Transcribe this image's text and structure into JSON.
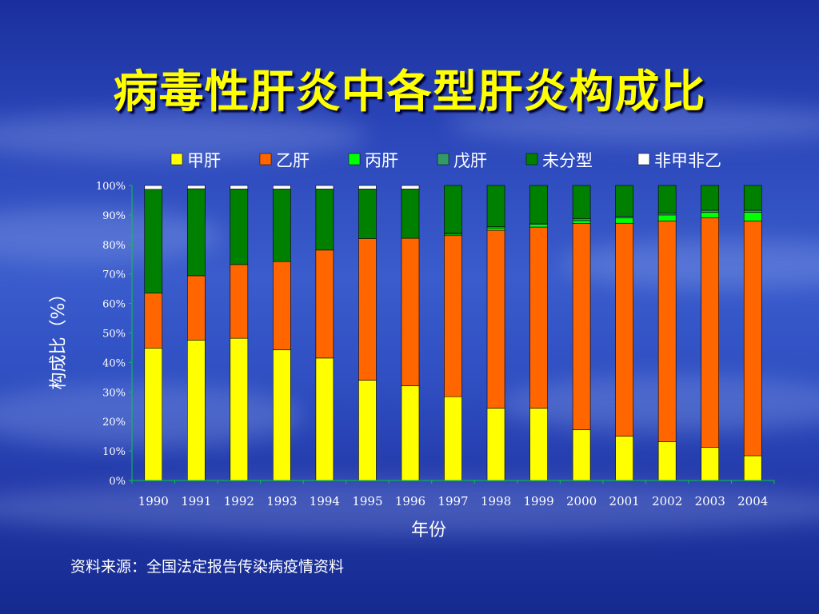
{
  "title": "病毒性肝炎中各型肝炎构成比",
  "source_note": "资料来源：全国法定报告传染病疫情资料",
  "chart_data": {
    "type": "bar",
    "stacked": true,
    "percent": true,
    "categories": [
      "1990",
      "1991",
      "1992",
      "1993",
      "1994",
      "1995",
      "1996",
      "1997",
      "1998",
      "1999",
      "2000",
      "2001",
      "2002",
      "2003",
      "2004"
    ],
    "series": [
      {
        "name": "甲肝",
        "color": "#ffff00",
        "values": [
          44.9,
          47.6,
          48.2,
          44.3,
          41.5,
          34.0,
          32.1,
          28.4,
          24.5,
          24.5,
          17.2,
          15.0,
          13.1,
          11.2,
          8.4
        ]
      },
      {
        "name": "乙肝",
        "color": "#ff6600",
        "values": [
          18.6,
          21.8,
          25.0,
          29.9,
          36.6,
          48.0,
          50.0,
          54.6,
          60.3,
          61.4,
          69.9,
          72.2,
          74.9,
          77.8,
          79.6
        ]
      },
      {
        "name": "丙肝",
        "color": "#00ff00",
        "values": [
          0,
          0,
          0,
          0,
          0,
          0,
          0,
          0.5,
          0.8,
          0.9,
          1.0,
          1.8,
          2.0,
          1.9,
          2.9
        ]
      },
      {
        "name": "戊肝",
        "color": "#339966",
        "values": [
          0,
          0,
          0,
          0,
          0,
          0,
          0,
          0.3,
          0.4,
          0.4,
          0.6,
          0.6,
          0.6,
          0.7,
          0.7
        ]
      },
      {
        "name": "未分型",
        "color": "#008000",
        "values": [
          35.2,
          29.5,
          25.6,
          24.6,
          20.7,
          16.8,
          16.7,
          16.2,
          14.0,
          12.8,
          11.3,
          10.4,
          9.4,
          8.4,
          8.4
        ]
      },
      {
        "name": "非甲非乙",
        "color": "#ffffff",
        "values": [
          1.3,
          1.1,
          1.2,
          1.2,
          1.2,
          1.2,
          1.2,
          0,
          0,
          0,
          0,
          0,
          0,
          0,
          0
        ]
      }
    ],
    "ylabel": "构成比（%）",
    "xlabel": "年份",
    "ylim": [
      0,
      100
    ],
    "yticks": [
      "0%",
      "10%",
      "20%",
      "30%",
      "40%",
      "50%",
      "60%",
      "70%",
      "80%",
      "90%",
      "100%"
    ],
    "legend_position": "top",
    "grid": false
  }
}
